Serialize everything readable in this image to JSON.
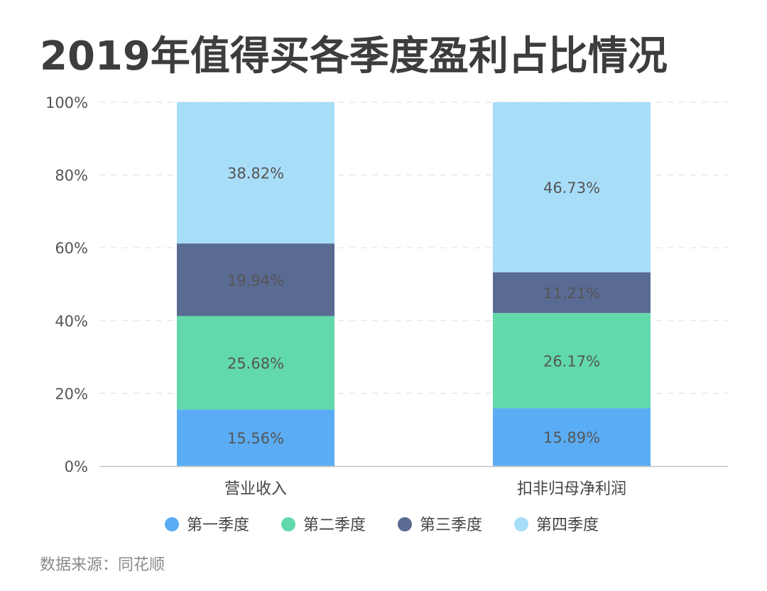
{
  "title": "2019年值得买各季度盈利占比情况",
  "source": "数据来源：同花顺",
  "chart_data": {
    "type": "bar",
    "stacked": true,
    "categories": [
      "营业收入",
      "扣非归母净利润"
    ],
    "series": [
      {
        "name": "第一季度",
        "color": "#5aadf4",
        "values": [
          15.56,
          15.89
        ],
        "labels": [
          "15.56%",
          "15.89%"
        ]
      },
      {
        "name": "第二季度",
        "color": "#62d9ab",
        "values": [
          25.68,
          26.17
        ],
        "labels": [
          "25.68%",
          "26.17%"
        ]
      },
      {
        "name": "第三季度",
        "color": "#5a6b93",
        "values": [
          19.94,
          11.21
        ],
        "labels": [
          "19.94%",
          "11.21%"
        ]
      },
      {
        "name": "第四季度",
        "color": "#a8ddf8",
        "values": [
          38.82,
          46.73
        ],
        "labels": [
          "38.82%",
          "46.73%"
        ]
      }
    ],
    "y_ticks": [
      "0%",
      "20%",
      "40%",
      "60%",
      "80%",
      "100%"
    ],
    "ylim": [
      0,
      100
    ],
    "grid": true,
    "legend_position": "bottom"
  }
}
